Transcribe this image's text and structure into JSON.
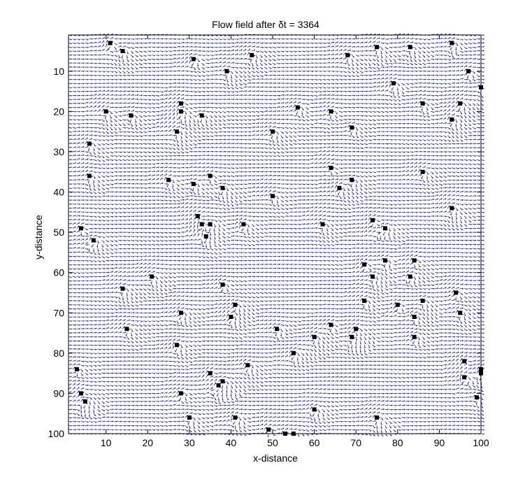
{
  "chart_data": {
    "type": "quiver",
    "title": "Flow field after δt = 3364",
    "xlabel": "x-distance",
    "ylabel": "y-distance",
    "xlim": [
      1,
      100
    ],
    "ylim": [
      1,
      100
    ],
    "y_axis_reversed": true,
    "grid": false,
    "x_ticks": [
      "10",
      "20",
      "30",
      "40",
      "50",
      "60",
      "70",
      "80",
      "90",
      "100"
    ],
    "y_ticks": [
      "10",
      "20",
      "30",
      "40",
      "50",
      "60",
      "70",
      "80",
      "90",
      "100"
    ],
    "arrow_color": "#1010a8",
    "obstacle_color": "#000000",
    "field": {
      "grid_step": 1,
      "predominant_direction": "left-to-right"
    },
    "obstacles": [
      [
        11,
        3
      ],
      [
        14,
        5
      ],
      [
        31,
        7
      ],
      [
        45,
        6
      ],
      [
        68,
        6
      ],
      [
        75,
        4
      ],
      [
        83,
        4
      ],
      [
        93,
        3
      ],
      [
        39,
        10
      ],
      [
        97,
        10
      ],
      [
        100,
        14
      ],
      [
        79,
        13
      ],
      [
        28,
        18
      ],
      [
        10,
        20
      ],
      [
        16,
        21
      ],
      [
        28,
        20
      ],
      [
        33,
        21
      ],
      [
        56,
        19
      ],
      [
        64,
        20
      ],
      [
        86,
        18
      ],
      [
        95,
        18
      ],
      [
        93,
        22
      ],
      [
        27,
        25
      ],
      [
        50,
        25
      ],
      [
        69,
        24
      ],
      [
        6,
        28
      ],
      [
        64,
        34
      ],
      [
        86,
        35
      ],
      [
        6,
        36
      ],
      [
        25,
        37
      ],
      [
        31,
        38
      ],
      [
        35,
        36
      ],
      [
        38,
        39
      ],
      [
        66,
        39
      ],
      [
        69,
        37
      ],
      [
        50,
        41
      ],
      [
        93,
        44
      ],
      [
        32,
        46
      ],
      [
        33,
        48
      ],
      [
        35,
        48
      ],
      [
        4,
        49
      ],
      [
        43,
        48
      ],
      [
        62,
        48
      ],
      [
        74,
        47
      ],
      [
        77,
        49
      ],
      [
        34,
        51
      ],
      [
        7,
        52
      ],
      [
        72,
        58
      ],
      [
        77,
        57
      ],
      [
        84,
        57
      ],
      [
        21,
        61
      ],
      [
        74,
        61
      ],
      [
        83,
        61
      ],
      [
        14,
        64
      ],
      [
        38,
        63
      ],
      [
        94,
        65
      ],
      [
        41,
        68
      ],
      [
        72,
        67
      ],
      [
        80,
        68
      ],
      [
        86,
        67
      ],
      [
        28,
        70
      ],
      [
        40,
        71
      ],
      [
        84,
        71
      ],
      [
        95,
        70
      ],
      [
        64,
        73
      ],
      [
        15,
        74
      ],
      [
        51,
        74
      ],
      [
        70,
        74
      ],
      [
        27,
        78
      ],
      [
        60,
        76
      ],
      [
        69,
        76
      ],
      [
        84,
        76
      ],
      [
        55,
        80
      ],
      [
        96,
        82
      ],
      [
        3,
        84
      ],
      [
        44,
        83
      ],
      [
        100,
        84
      ],
      [
        100,
        85
      ],
      [
        35,
        85
      ],
      [
        96,
        86
      ],
      [
        38,
        87
      ],
      [
        37,
        88
      ],
      [
        4,
        90
      ],
      [
        28,
        90
      ],
      [
        5,
        92
      ],
      [
        99,
        91
      ],
      [
        60,
        94
      ],
      [
        30,
        96
      ],
      [
        41,
        96
      ],
      [
        75,
        96
      ],
      [
        49,
        99
      ],
      [
        53,
        100
      ],
      [
        55,
        100
      ]
    ]
  }
}
